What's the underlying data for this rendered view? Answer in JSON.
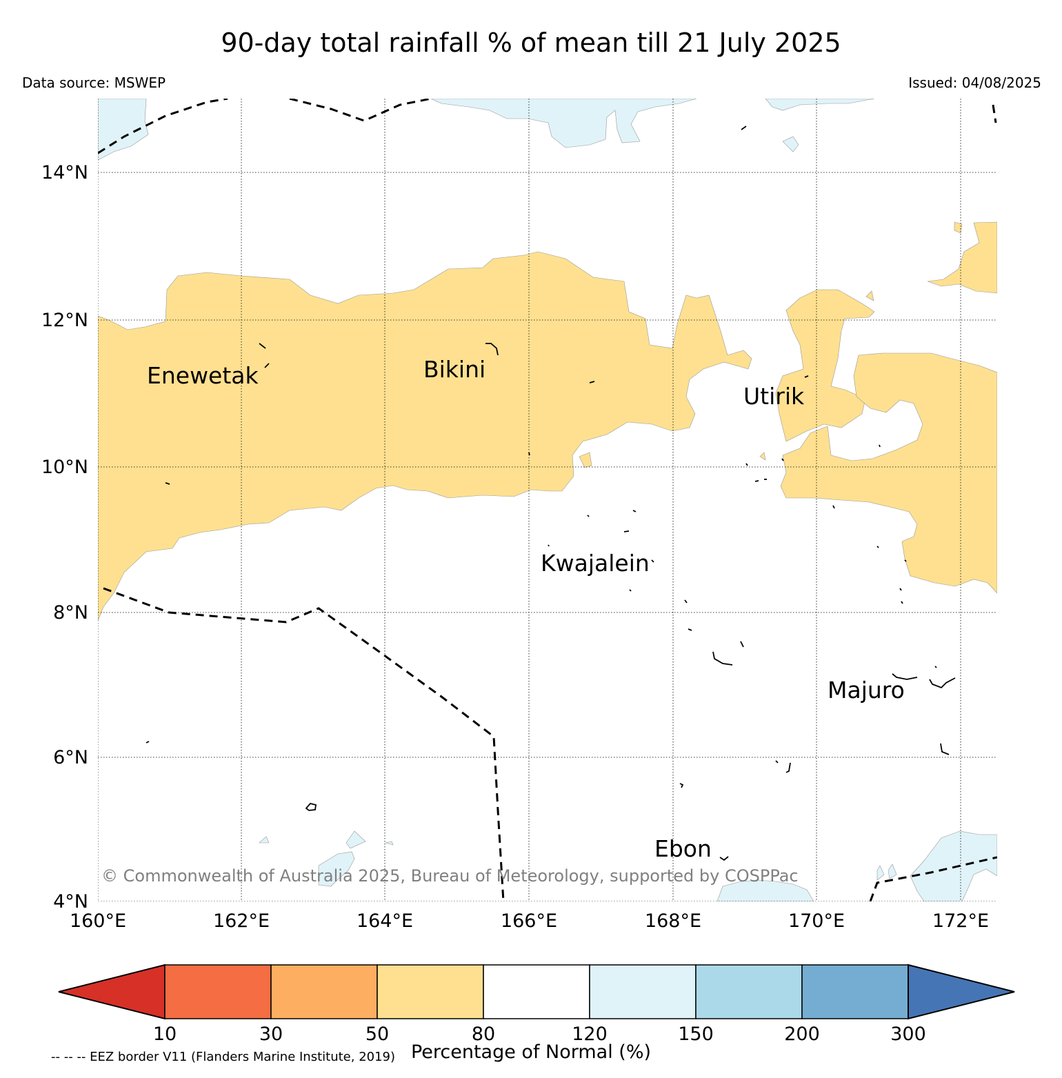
{
  "header": {
    "title": "90-day total rainfall % of mean till 21 July 2025",
    "data_source": "Data source: MSWEP",
    "issued": "Issued: 04/08/2025"
  },
  "map": {
    "lat_labels": [
      "14°N",
      "12°N",
      "10°N",
      "8°N",
      "6°N",
      "4°N"
    ],
    "lon_labels": [
      "160°E",
      "162°E",
      "164°E",
      "166°E",
      "168°E",
      "170°E",
      "172°E"
    ],
    "places": [
      "Enewetak",
      "Bikini",
      "Utirik",
      "Kwajalein",
      "Majuro",
      "Ebon"
    ],
    "copyright": "© Commonwealth of Australia 2025, Bureau of Meteorology, supported by COSPPac",
    "colors": {
      "below_80": "#fee090",
      "normal_80_120": "#ffffff",
      "above_120": "#e0f3f8"
    }
  },
  "colorbar": {
    "ticks": [
      "10",
      "30",
      "50",
      "80",
      "120",
      "150",
      "200",
      "300"
    ],
    "colors": [
      "#d73027",
      "#f46d43",
      "#fdae61",
      "#fee090",
      "#ffffff",
      "#e0f3f8",
      "#abd9e9",
      "#74add1",
      "#4575b4"
    ],
    "label": "Percentage of Normal (%)"
  },
  "footnote": "-- -- -- EEZ border V11 (Flanders Marine Institute, 2019)"
}
